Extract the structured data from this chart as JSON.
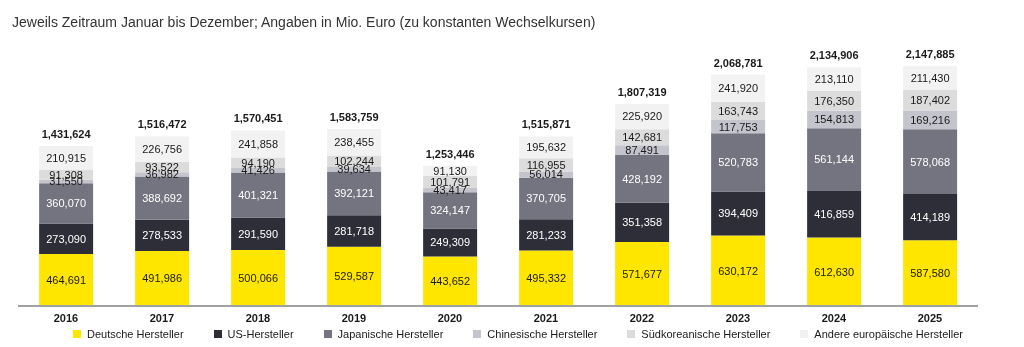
{
  "chart_data": {
    "type": "bar",
    "title": "Jeweils Zeitraum Januar bis Dezember; Angaben in Mio. Euro (zu konstanten Wechselkursen)",
    "categories": [
      "2016",
      "2017",
      "2018",
      "2019",
      "2020",
      "2021",
      "2022",
      "2023",
      "2024",
      "2025"
    ],
    "stacked": true,
    "legend": "bottom",
    "series": [
      {
        "name": "Deutsche Hersteller",
        "color": "#ffe600",
        "values": [
          464691,
          491986,
          500066,
          529587,
          443652,
          495332,
          571677,
          630172,
          612630,
          587580
        ],
        "value_labels": [
          "464,691",
          "491,986",
          "500,066",
          "529,587",
          "443,652",
          "495,332",
          "571,677",
          "630,172",
          "612,630",
          "587,580"
        ]
      },
      {
        "name": "US-Hersteller",
        "color": "#2e2e38",
        "values": [
          273090,
          278533,
          291590,
          281718,
          249309,
          281233,
          351358,
          394409,
          416859,
          414189
        ],
        "value_labels": [
          "273,090",
          "278,533",
          "291,590",
          "281,718",
          "249,309",
          "281,233",
          "351,358",
          "394,409",
          "416,859",
          "414,189"
        ]
      },
      {
        "name": "Japanische Hersteller",
        "color": "#747480",
        "values": [
          360070,
          388692,
          401321,
          392121,
          324147,
          370705,
          428192,
          520783,
          561144,
          578068
        ],
        "value_labels": [
          "360,070",
          "388,692",
          "401,321",
          "392,121",
          "324,147",
          "370,705",
          "428,192",
          "520,783",
          "561,144",
          "578,068"
        ]
      },
      {
        "name": "Chinesische Hersteller",
        "color": "#c4c4cd",
        "values": [
          31550,
          36982,
          41426,
          39634,
          43417,
          56014,
          87491,
          117753,
          154813,
          169216
        ],
        "value_labels": [
          "31,550",
          "36,982",
          "41,426",
          "39,634",
          "43,417",
          "56,014",
          "87,491",
          "117,753",
          "154,813",
          "169,216"
        ]
      },
      {
        "name": "Südkoreanische Hersteller",
        "color": "#dcdcdc",
        "values": [
          91308,
          93522,
          94190,
          102244,
          101791,
          116955,
          142681,
          163743,
          176350,
          187402
        ],
        "value_labels": [
          "91,308",
          "93,522",
          "94,190",
          "102,244",
          "101,791",
          "116,955",
          "142,681",
          "163,743",
          "176,350",
          "187,402"
        ]
      },
      {
        "name": "Andere europäische Hersteller",
        "color": "#f2f2f2",
        "values": [
          210915,
          226756,
          241858,
          238455,
          91130,
          195632,
          225920,
          241920,
          213110,
          211430
        ],
        "value_labels": [
          "210,915",
          "226,756",
          "241,858",
          "238,455",
          "91,130",
          "195,632",
          "225,920",
          "241,920",
          "213,110",
          "211,430"
        ]
      }
    ],
    "totals": [
      "1,431,624",
      "1,516,472",
      "1,570,451",
      "1,583,759",
      "1,253,446",
      "1,515,871",
      "1,807,319",
      "2,068,781",
      "2,134,906",
      "2,147,885"
    ]
  }
}
